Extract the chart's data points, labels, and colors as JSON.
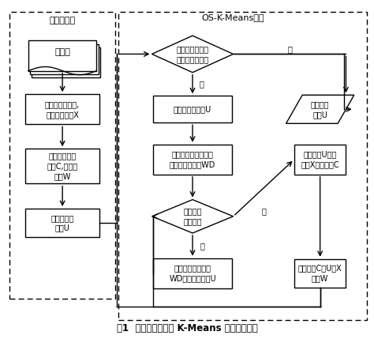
{
  "title": "图1  可重叠的子空间 K-Means 聚类算法流程",
  "left_title": "数据预处理",
  "right_title": "OS-K-Means算法",
  "dataset_text": "数据集",
  "process_text": "将数据进行处理,\n得到数据矩阵X",
  "init_cluster_text": "初始化簇中心\n矩阵C,簇权重\n矩阵W",
  "init_u_left_text": "初始化指示\n矩阵U",
  "convergence_text": "是否收敛或者达\n到最大迭代次数",
  "init_u_right_text": "初始化指示矩阵U",
  "calc_wd_text": "计算数据点与簇中心\n的加权距离矩阵WD",
  "overlap_text": "是否达到\n重叠程度",
  "update_u_text": "根据加权距离矩阵\nWD更新指示矩阵U",
  "output_u_text": "输出指示\n矩阵U",
  "update_c_text": "根据矩阵U以及\n矩阵X更新矩阵C",
  "update_w_text": "根据矩阵C、U、X\n更新W",
  "yes_label": "是",
  "no_label": "否"
}
